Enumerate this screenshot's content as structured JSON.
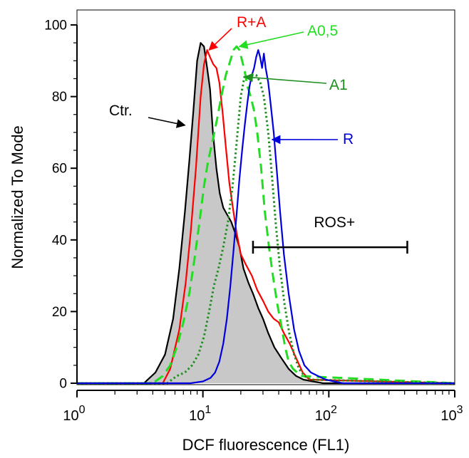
{
  "chart_data": {
    "type": "line",
    "title": "",
    "xlabel": "DCF fluorescence (FL1)",
    "ylabel": "Normalized To Mode",
    "xscale": "log",
    "xlim": [
      1,
      1000
    ],
    "ylim": [
      0,
      100
    ],
    "xticks": [
      {
        "base": "10",
        "exp": "0"
      },
      {
        "base": "10",
        "exp": "1"
      },
      {
        "base": "10",
        "exp": "2"
      },
      {
        "base": "10",
        "exp": "3"
      }
    ],
    "yticks": [
      "0",
      "20",
      "40",
      "60",
      "80",
      "100"
    ],
    "grid": false,
    "series": [
      {
        "name": "Ctr.",
        "color": "#000000",
        "fill": "#c8c8c8",
        "style": "solid",
        "x": [
          1,
          3.4,
          4.2,
          5.0,
          5.8,
          6.5,
          7.2,
          7.8,
          8.4,
          9.0,
          9.6,
          10.2,
          10.8,
          11.4,
          12.0,
          12.8,
          13.6,
          14.5,
          15.6,
          16.8,
          18.0,
          19.5,
          21.0,
          23.0,
          25.0,
          27.5,
          30.0,
          33.0,
          37.0,
          42.0,
          48.0,
          55.0,
          63.0,
          75.0,
          90.0,
          1000
        ],
        "y": [
          0,
          0,
          3,
          8,
          18,
          32,
          48,
          62,
          76,
          90,
          95,
          94,
          88,
          82,
          70,
          60,
          53,
          49,
          47,
          45,
          42,
          38,
          32,
          28,
          25,
          21,
          18,
          14,
          10,
          7,
          4,
          2,
          1,
          0.5,
          0,
          0
        ]
      },
      {
        "name": "R+A",
        "color": "#ff0000",
        "style": "solid",
        "x": [
          1,
          4.8,
          5.5,
          6.5,
          7.3,
          8.0,
          8.8,
          9.6,
          10.2,
          10.8,
          11.4,
          12.1,
          12.8,
          13.5,
          14.3,
          15.2,
          16.2,
          17.3,
          18.5,
          20.0,
          22.0,
          24.5,
          27.0,
          30.0,
          33.0,
          36.5,
          40.0,
          44.0,
          49.0,
          55.0,
          62.0,
          70.0,
          1000
        ],
        "y": [
          0,
          0,
          4,
          15,
          28,
          42,
          60,
          80,
          89,
          93,
          91,
          89,
          88,
          84,
          76,
          66,
          56,
          49,
          42,
          36,
          33,
          30,
          26,
          23,
          20,
          18,
          17,
          14,
          11,
          7,
          3,
          1,
          0
        ]
      },
      {
        "name": "A0,5",
        "color": "#22dd22",
        "style": "dashed",
        "x": [
          1,
          4.0,
          4.8,
          5.5,
          6.2,
          7.0,
          7.8,
          8.6,
          9.4,
          10.2,
          11.0,
          12.0,
          13.0,
          14.0,
          15.2,
          16.5,
          17.5,
          18.5,
          19.5,
          20.5,
          21.5,
          22.5,
          24.0,
          25.5,
          27.0,
          29.0,
          31.0,
          33.5,
          36.0,
          39.0,
          42.0,
          45.0,
          48.0,
          52.0,
          56.0,
          60.0,
          1000
        ],
        "y": [
          0,
          0,
          2,
          5,
          10,
          17,
          25,
          35,
          45,
          55,
          62,
          68,
          74,
          80,
          86,
          90,
          93,
          94,
          93,
          90,
          87,
          83,
          80,
          76,
          70,
          60,
          48,
          38,
          30,
          22,
          16,
          10,
          6,
          4,
          3,
          2,
          0
        ]
      },
      {
        "name": "A1",
        "color": "#1f8f1f",
        "style": "dotted",
        "x": [
          1,
          5.2,
          6.2,
          7.2,
          8.2,
          9.2,
          10.2,
          11.2,
          12.2,
          13.3,
          14.5,
          15.8,
          17.2,
          18.5,
          20.0,
          21.5,
          23.0,
          24.5,
          26.5,
          28.5,
          30.5,
          33.0,
          35.5,
          38.0,
          41.0,
          44.5,
          48.5,
          53.0,
          58.0,
          64.0,
          72.0,
          1000
        ],
        "y": [
          0,
          0,
          2,
          3,
          5,
          8,
          13,
          20,
          27,
          32,
          38,
          45,
          55,
          67,
          80,
          86,
          85,
          86,
          86,
          84,
          80,
          70,
          57,
          44,
          32,
          22,
          14,
          8,
          4,
          2,
          1,
          0
        ]
      },
      {
        "name": "R",
        "color": "#0000dd",
        "style": "solid",
        "x": [
          1,
          8.0,
          10.0,
          11.5,
          12.5,
          13.5,
          14.5,
          15.5,
          16.5,
          17.5,
          18.5,
          19.5,
          20.5,
          21.5,
          22.5,
          23.5,
          24.5,
          25.5,
          26.5,
          27.5,
          28.5,
          29.5,
          30.5,
          31.5,
          33.0,
          34.5,
          36.5,
          38.5,
          41.0,
          44.0,
          48.0,
          53.0,
          58.0,
          64.0,
          72.0,
          82.0,
          95.0,
          110.0,
          130.0,
          1000
        ],
        "y": [
          0,
          0,
          0.5,
          1.5,
          3,
          6,
          11,
          18,
          27,
          37,
          47,
          57,
          65,
          72,
          78,
          83,
          86,
          88,
          91,
          93,
          91,
          88,
          92,
          88,
          84,
          78,
          70,
          60,
          48,
          36,
          25,
          15,
          9,
          5,
          3,
          2,
          1,
          0.5,
          0,
          0
        ]
      }
    ],
    "annotations": [
      {
        "label": "Ctr.",
        "color": "#000000",
        "at": {
          "x": 7.2,
          "y": 72
        }
      },
      {
        "label": "R+A",
        "color": "#ff0000",
        "at": {
          "x": 11.2,
          "y": 93
        }
      },
      {
        "label": "A0,5",
        "color": "#22dd22",
        "at": {
          "x": 19.5,
          "y": 94
        }
      },
      {
        "label": "A1",
        "color": "#1f8f1f",
        "at": {
          "x": 21.5,
          "y": 85.5
        }
      },
      {
        "label": "R",
        "color": "#0000dd",
        "at": {
          "x": 35.5,
          "y": 68
        }
      }
    ],
    "gate": {
      "label": "ROS+",
      "x_start": 25,
      "x_end": 420,
      "y": 30,
      "color": "#000000"
    }
  }
}
